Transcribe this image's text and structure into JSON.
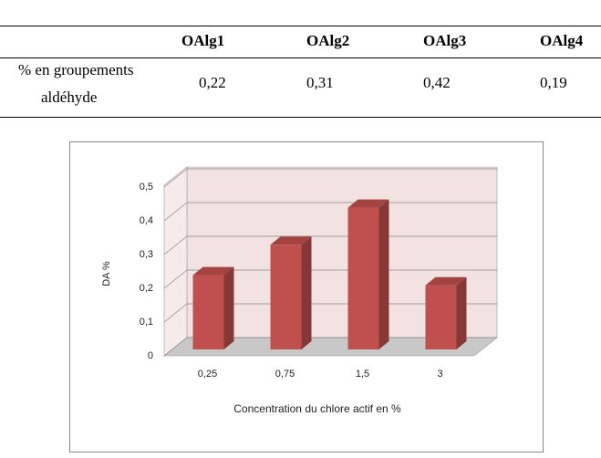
{
  "table": {
    "header": [
      "OAlg1",
      "OAlg2",
      "OAlg3",
      "OAlg4"
    ],
    "row_label": [
      "% en groupements",
      "aldéhyde"
    ],
    "row_values": [
      "0,22",
      "0,31",
      "0,42",
      "0,19"
    ]
  },
  "chart_data": {
    "type": "bar",
    "xlabel": "Concentration du chlore  actif en %",
    "ylabel": "DA %",
    "categories": [
      "0,25",
      "0,75",
      "1,5",
      "3"
    ],
    "values": [
      0.22,
      0.31,
      0.42,
      0.19
    ],
    "color": "#c0504d",
    "ylim": [
      0,
      0.5
    ],
    "yticks": [
      0,
      {
        "value": 0.1,
        "label": "0,1"
      },
      {
        "value": 0.2,
        "label": "0,2"
      },
      {
        "value": 0.3,
        "label": "0,3"
      },
      {
        "value": 0.4,
        "label": "0,4"
      },
      {
        "value": 0.5,
        "label": "0,5"
      }
    ],
    "grid": true
  }
}
